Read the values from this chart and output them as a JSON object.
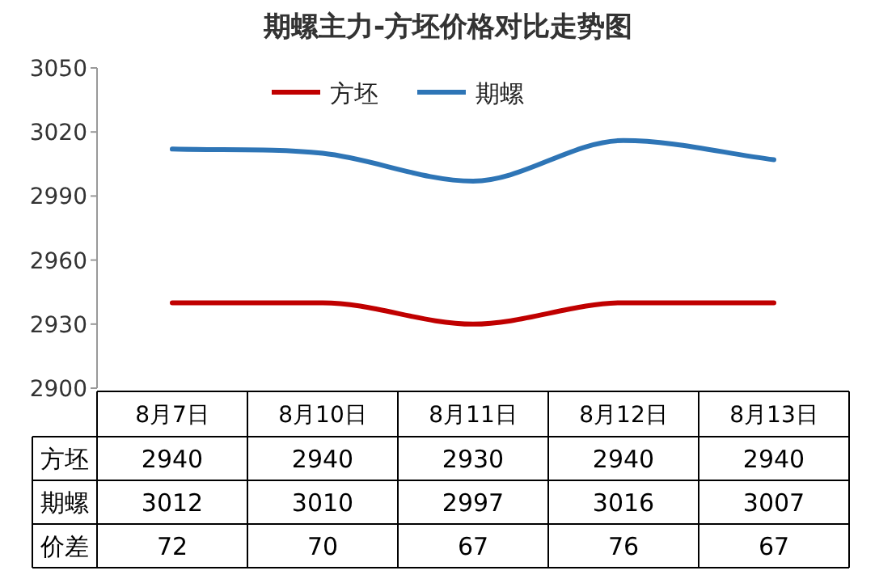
{
  "chart_data": {
    "type": "line",
    "title": "期螺主力-方坯价格对比走势图",
    "categories": [
      "8月7日",
      "8月10日",
      "8月11日",
      "8月12日",
      "8月13日"
    ],
    "series": [
      {
        "name": "方坯",
        "color": "#c00000",
        "values": [
          2940,
          2940,
          2930,
          2940,
          2940
        ]
      },
      {
        "name": "期螺",
        "color": "#2e75b6",
        "values": [
          3012,
          3010,
          2997,
          3016,
          3007
        ]
      },
      {
        "name": "价差",
        "values": [
          null,
          null,
          null,
          null,
          null
        ],
        "value_labels": [
          "72",
          "70",
          "67",
          "76",
          "67"
        ]
      }
    ],
    "ylim": [
      2900,
      3050
    ],
    "yticks": [
      2900,
      2930,
      2960,
      2990,
      3020,
      3050
    ],
    "legend": "top",
    "data_labels": true,
    "marker": "none",
    "line_style": "solid",
    "grid": false
  }
}
